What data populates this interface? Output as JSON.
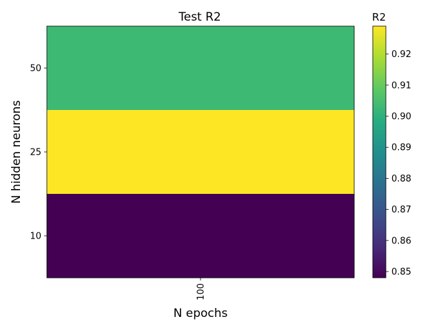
{
  "chart_data": {
    "type": "heatmap",
    "title": "Test R2",
    "xlabel": "N epochs",
    "ylabel": "N hidden neurons",
    "x_categories": [
      "100"
    ],
    "y_categories": [
      "50",
      "25",
      "10"
    ],
    "values": [
      [
        0.903
      ],
      [
        0.929
      ],
      [
        0.848
      ]
    ],
    "colormap": "viridis",
    "colorbar": {
      "label": "R2",
      "vmin": 0.848,
      "vmax": 0.929,
      "ticks": [
        "0.85",
        "0.86",
        "0.87",
        "0.88",
        "0.89",
        "0.90",
        "0.91",
        "0.92"
      ]
    }
  }
}
